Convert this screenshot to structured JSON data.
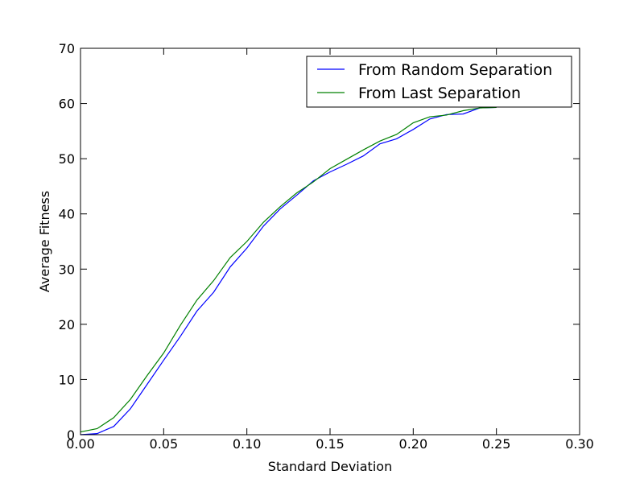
{
  "chart_data": {
    "type": "line",
    "title": "",
    "xlabel": "Standard Deviation",
    "ylabel": "Average Fitness",
    "xlim": [
      0.0,
      0.3
    ],
    "ylim": [
      0,
      70
    ],
    "x_ticks": [
      "0.00",
      "0.05",
      "0.10",
      "0.15",
      "0.20",
      "0.25",
      "0.30"
    ],
    "y_ticks": [
      "0",
      "10",
      "20",
      "30",
      "40",
      "50",
      "60",
      "70"
    ],
    "grid": false,
    "legend_position": "top-right",
    "series": [
      {
        "name": "From Random Separation",
        "color": "#0000ff",
        "x": [
          0.0,
          0.01,
          0.02,
          0.03,
          0.04,
          0.05,
          0.06,
          0.07,
          0.08,
          0.09,
          0.1,
          0.11,
          0.12,
          0.13,
          0.14,
          0.15,
          0.16,
          0.17,
          0.18,
          0.19,
          0.2,
          0.21,
          0.22,
          0.23,
          0.24,
          0.25
        ],
        "values": [
          0.0,
          0.2,
          1.5,
          4.7,
          9.1,
          13.5,
          17.8,
          22.4,
          25.8,
          30.4,
          33.8,
          37.8,
          40.9,
          43.4,
          46.0,
          47.6,
          49.0,
          50.5,
          52.7,
          53.6,
          55.3,
          57.2,
          58.0,
          58.1,
          59.2,
          59.3
        ]
      },
      {
        "name": "From Last Separation",
        "color": "#008000",
        "x": [
          0.0,
          0.01,
          0.02,
          0.03,
          0.04,
          0.05,
          0.06,
          0.07,
          0.08,
          0.09,
          0.1,
          0.11,
          0.12,
          0.13,
          0.14,
          0.15,
          0.16,
          0.17,
          0.18,
          0.19,
          0.2,
          0.21,
          0.22,
          0.23,
          0.24,
          0.25
        ],
        "values": [
          0.5,
          1.1,
          3.1,
          6.4,
          10.7,
          14.8,
          19.8,
          24.4,
          27.9,
          32.1,
          35.0,
          38.5,
          41.3,
          43.8,
          45.8,
          48.2,
          49.9,
          51.6,
          53.2,
          54.4,
          56.5,
          57.6,
          57.9,
          58.7,
          59.2,
          59.3
        ]
      }
    ]
  }
}
